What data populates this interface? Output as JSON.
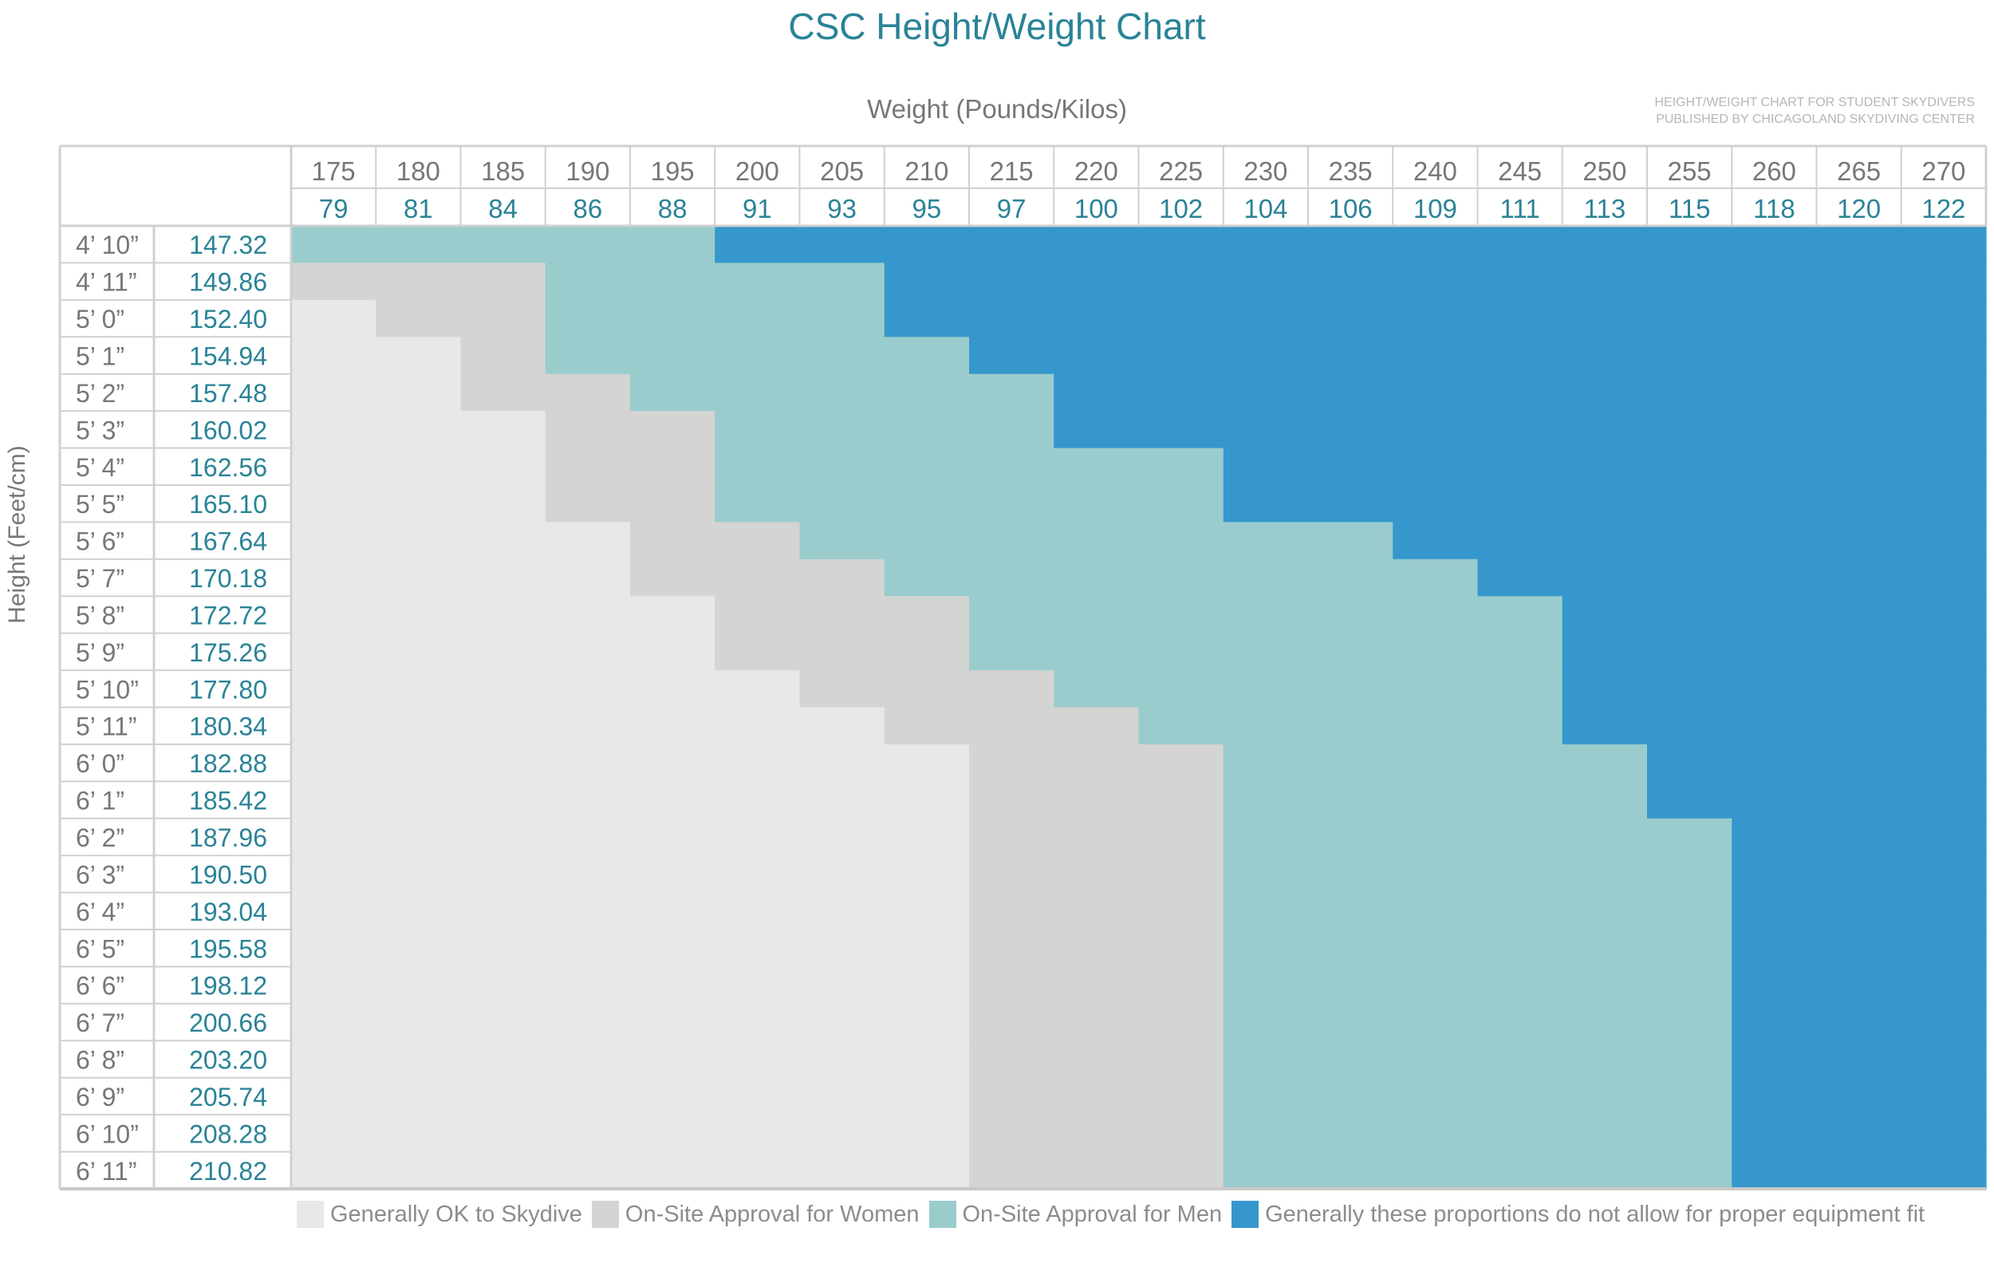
{
  "title": "CSC Height/Weight Chart",
  "note_lines": [
    "HEIGHT/WEIGHT CHART FOR STUDENT SKYDIVERS",
    "PUBLISHED BY CHICAGOLAND SKYDIVING CENTER"
  ],
  "colors": {
    "ok": "#e8e8e8",
    "women": "#d4d4d3",
    "men": "#9acccd",
    "no_fit": "#3597cc",
    "accent_text": "#2a8396",
    "label_text": "#777777",
    "grid_line": "#d0d0d0"
  },
  "legend": [
    {
      "key": "ok",
      "label": "Generally OK to Skydive"
    },
    {
      "key": "women",
      "label": "On-Site Approval for Women"
    },
    {
      "key": "men",
      "label": "On-Site Approval for Men"
    },
    {
      "key": "no_fit",
      "label": "Generally these proportions do not allow for proper equipment fit"
    }
  ],
  "chart_data": {
    "type": "heatmap",
    "title": "CSC Height/Weight Chart",
    "xlabel": "Weight (Pounds/Kilos)",
    "ylabel": "Height (Feet/cm)",
    "weights_lbs": [
      "175",
      "180",
      "185",
      "190",
      "195",
      "200",
      "205",
      "210",
      "215",
      "220",
      "225",
      "230",
      "235",
      "240",
      "245",
      "250",
      "255",
      "260",
      "265",
      "270"
    ],
    "weights_kg": [
      "79",
      "81",
      "84",
      "86",
      "88",
      "91",
      "93",
      "95",
      "97",
      "100",
      "102",
      "104",
      "106",
      "109",
      "111",
      "113",
      "115",
      "118",
      "120",
      "122"
    ],
    "heights_ft": [
      "4’ 10”",
      "4’ 11”",
      "5’ 0”",
      "5’ 1”",
      "5’ 2”",
      "5’ 3”",
      "5’ 4”",
      "5’ 5”",
      "5’ 6”",
      "5’ 7”",
      "5’ 8”",
      "5’ 9”",
      "5’ 10”",
      "5’ 11”",
      "6’ 0”",
      "6’ 1”",
      "6’ 2”",
      "6’ 3”",
      "6’ 4”",
      "6’ 5”",
      "6’ 6”",
      "6’ 7”",
      "6’ 8”",
      "6’ 9”",
      "6’ 10”",
      "6’ 11”"
    ],
    "heights_cm": [
      "147.32",
      "149.86",
      "152.40",
      "154.94",
      "157.48",
      "160.02",
      "162.56",
      "165.10",
      "167.64",
      "170.18",
      "172.72",
      "175.26",
      "177.80",
      "180.34",
      "182.88",
      "185.42",
      "187.96",
      "190.50",
      "193.04",
      "195.58",
      "198.12",
      "200.66",
      "203.20",
      "205.74",
      "208.28",
      "210.82"
    ],
    "category_thresholds_lbs": [
      {
        "ok_max": null,
        "women_max": null,
        "men_max": 195
      },
      {
        "ok_max": null,
        "women_max": 185,
        "men_max": 205
      },
      {
        "ok_max": 175,
        "women_max": 185,
        "men_max": 205
      },
      {
        "ok_max": 180,
        "women_max": 185,
        "men_max": 210
      },
      {
        "ok_max": 180,
        "women_max": 190,
        "men_max": 215
      },
      {
        "ok_max": 185,
        "women_max": 195,
        "men_max": 215
      },
      {
        "ok_max": 185,
        "women_max": 195,
        "men_max": 225
      },
      {
        "ok_max": 185,
        "women_max": 195,
        "men_max": 225
      },
      {
        "ok_max": 190,
        "women_max": 200,
        "men_max": 235
      },
      {
        "ok_max": 190,
        "women_max": 205,
        "men_max": 240
      },
      {
        "ok_max": 195,
        "women_max": 210,
        "men_max": 245
      },
      {
        "ok_max": 195,
        "women_max": 210,
        "men_max": 245
      },
      {
        "ok_max": 200,
        "women_max": 215,
        "men_max": 245
      },
      {
        "ok_max": 205,
        "women_max": 220,
        "men_max": 245
      },
      {
        "ok_max": 210,
        "women_max": 225,
        "men_max": 250
      },
      {
        "ok_max": 210,
        "women_max": 225,
        "men_max": 250
      },
      {
        "ok_max": 210,
        "women_max": 225,
        "men_max": 255
      },
      {
        "ok_max": 210,
        "women_max": 225,
        "men_max": 255
      },
      {
        "ok_max": 210,
        "women_max": 225,
        "men_max": 255
      },
      {
        "ok_max": 210,
        "women_max": 225,
        "men_max": 255
      },
      {
        "ok_max": 210,
        "women_max": 225,
        "men_max": 255
      },
      {
        "ok_max": 210,
        "women_max": 225,
        "men_max": 255
      },
      {
        "ok_max": 210,
        "women_max": 225,
        "men_max": 255
      },
      {
        "ok_max": 210,
        "women_max": 225,
        "men_max": 255
      },
      {
        "ok_max": 210,
        "women_max": 225,
        "men_max": 255
      },
      {
        "ok_max": 210,
        "women_max": 225,
        "men_max": 255
      }
    ]
  }
}
